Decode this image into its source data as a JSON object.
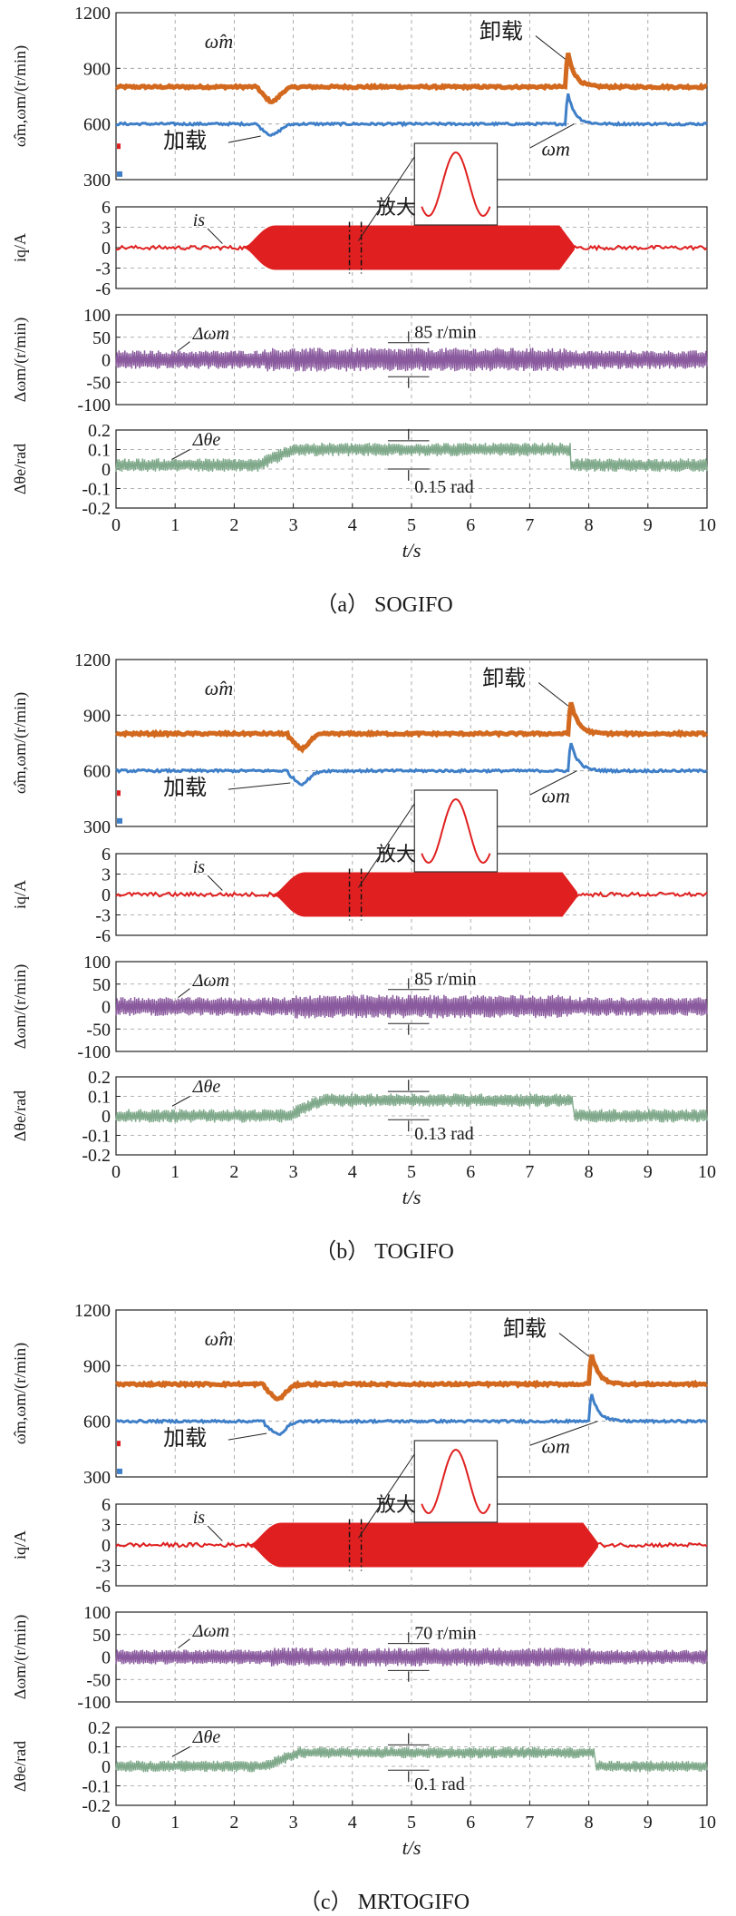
{
  "chart_data": [
    {
      "type": "line",
      "title": "(a) SOGIFO",
      "caption": "（a） SOGIFO",
      "xlabel": "t/s",
      "xlim": [
        0,
        10
      ],
      "x_ticks": [
        "0",
        "1",
        "2",
        "3",
        "4",
        "5",
        "6",
        "7",
        "8",
        "9",
        "10"
      ],
      "load_time": 2.5,
      "unload_time": 7.65,
      "panels": [
        {
          "id": "speed",
          "ylabel": "ω̂m,ωm/(r/min)",
          "ylim": [
            300,
            1200
          ],
          "y_ticks": [
            "300",
            "600",
            "900",
            "1200"
          ],
          "series": [
            {
              "name": "ω̂m",
              "color": "#d2691e",
              "base": 800,
              "dip": -80,
              "peak": 180
            },
            {
              "name": "ωm",
              "color": "#3f7fc8",
              "base": 600,
              "dip": -60,
              "peak": 160
            }
          ],
          "annotations": {
            "load": "加载",
            "unload": "卸载",
            "est_label": "ω̂m",
            "act_label": "ωm"
          }
        },
        {
          "id": "current",
          "ylabel": "iq/A",
          "ylim": [
            -6,
            6
          ],
          "y_ticks": [
            "6",
            "3",
            "0",
            "-3",
            "-6"
          ],
          "series": [
            {
              "name": "is",
              "color": "#e02020",
              "amp_noload": 0.3,
              "amp_load": 3.2
            }
          ],
          "annotations": {
            "series_label": "is",
            "zoom": "放大"
          }
        },
        {
          "id": "speed_error",
          "ylabel": "Δωm/(r/min)",
          "ylim": [
            -100,
            100
          ],
          "y_ticks": [
            "100",
            "50",
            "0",
            "-50",
            "-100"
          ],
          "series": [
            {
              "name": "Δωm",
              "color": "#8a5a9e",
              "center": 0,
              "half_band": 38
            }
          ],
          "annotations": {
            "series_label": "Δωm",
            "range": "85 r/min"
          }
        },
        {
          "id": "angle_error",
          "ylabel": "Δθe/rad",
          "ylim": [
            -0.2,
            0.2
          ],
          "y_ticks": [
            "0.2",
            "0.1",
            "0",
            "-0.1",
            "-0.2"
          ],
          "series": [
            {
              "name": "Δθe",
              "color": "#7fa98a",
              "center_noload": 0.02,
              "center_load": 0.1,
              "half_band": 0.035
            }
          ],
          "annotations": {
            "series_label": "Δθe",
            "range": "0.15 rad"
          }
        }
      ]
    },
    {
      "type": "line",
      "title": "(b) TOGIFO",
      "caption": "（b） TOGIFO",
      "xlabel": "t/s",
      "xlim": [
        0,
        10
      ],
      "x_ticks": [
        "0",
        "1",
        "2",
        "3",
        "4",
        "5",
        "6",
        "7",
        "8",
        "9",
        "10"
      ],
      "load_time": 3.0,
      "unload_time": 7.7,
      "panels": [
        {
          "id": "speed",
          "ylabel": "ω̂m,ωm/(r/min)",
          "ylim": [
            300,
            1200
          ],
          "y_ticks": [
            "300",
            "600",
            "900",
            "1200"
          ],
          "series": [
            {
              "name": "ω̂m",
              "color": "#d2691e",
              "base": 800,
              "dip": -80,
              "peak": 170
            },
            {
              "name": "ωm",
              "color": "#3f7fc8",
              "base": 600,
              "dip": -70,
              "peak": 150
            }
          ],
          "annotations": {
            "load": "加载",
            "unload": "卸载",
            "est_label": "ω̂m",
            "act_label": "ωm"
          }
        },
        {
          "id": "current",
          "ylabel": "iq/A",
          "ylim": [
            -6,
            6
          ],
          "y_ticks": [
            "6",
            "3",
            "0",
            "-3",
            "-6"
          ],
          "series": [
            {
              "name": "is",
              "color": "#e02020",
              "amp_noload": 0.3,
              "amp_load": 3.2
            }
          ],
          "annotations": {
            "series_label": "is",
            "zoom": "放大"
          }
        },
        {
          "id": "speed_error",
          "ylabel": "Δωm/(r/min)",
          "ylim": [
            -100,
            100
          ],
          "y_ticks": [
            "100",
            "50",
            "0",
            "-50",
            "-100"
          ],
          "series": [
            {
              "name": "Δωm",
              "color": "#8a5a9e",
              "center": 0,
              "half_band": 38
            }
          ],
          "annotations": {
            "series_label": "Δωm",
            "range": "85 r/min"
          }
        },
        {
          "id": "angle_error",
          "ylabel": "Δθe/rad",
          "ylim": [
            -0.2,
            0.2
          ],
          "y_ticks": [
            "0.2",
            "0.1",
            "0",
            "-0.1",
            "-0.2"
          ],
          "series": [
            {
              "name": "Δθe",
              "color": "#7fa98a",
              "center_noload": 0.0,
              "center_load": 0.08,
              "half_band": 0.035
            }
          ],
          "annotations": {
            "series_label": "Δθe",
            "range": "0.13 rad"
          }
        }
      ]
    },
    {
      "type": "line",
      "title": "(c) MRTOGIFO",
      "caption": "（c） MRTOGIFO",
      "xlabel": "t/s",
      "xlim": [
        0,
        10
      ],
      "x_ticks": [
        "0",
        "1",
        "2",
        "3",
        "4",
        "5",
        "6",
        "7",
        "8",
        "9",
        "10"
      ],
      "load_time": 2.6,
      "unload_time": 8.05,
      "panels": [
        {
          "id": "speed",
          "ylabel": "ω̂m,ωm/(r/min)",
          "ylim": [
            300,
            1200
          ],
          "y_ticks": [
            "300",
            "600",
            "900",
            "1200"
          ],
          "series": [
            {
              "name": "ω̂m",
              "color": "#d2691e",
              "base": 800,
              "dip": -80,
              "peak": 160
            },
            {
              "name": "ωm",
              "color": "#3f7fc8",
              "base": 600,
              "dip": -70,
              "peak": 150
            }
          ],
          "annotations": {
            "load": "加载",
            "unload": "卸载",
            "est_label": "ω̂m",
            "act_label": "ωm"
          }
        },
        {
          "id": "current",
          "ylabel": "iq/A",
          "ylim": [
            -6,
            6
          ],
          "y_ticks": [
            "6",
            "3",
            "0",
            "-3",
            "-6"
          ],
          "series": [
            {
              "name": "is",
              "color": "#e02020",
              "amp_noload": 0.3,
              "amp_load": 3.2
            }
          ],
          "annotations": {
            "series_label": "is",
            "zoom": "放大"
          }
        },
        {
          "id": "speed_error",
          "ylabel": "Δωm/(r/min)",
          "ylim": [
            -100,
            100
          ],
          "y_ticks": [
            "100",
            "50",
            "0",
            "-50",
            "-100"
          ],
          "series": [
            {
              "name": "Δωm",
              "color": "#8a5a9e",
              "center": 0,
              "half_band": 30
            }
          ],
          "annotations": {
            "series_label": "Δωm",
            "range": "70 r/min"
          }
        },
        {
          "id": "angle_error",
          "ylabel": "Δθe/rad",
          "ylim": [
            -0.2,
            0.2
          ],
          "y_ticks": [
            "0.2",
            "0.1",
            "0",
            "-0.1",
            "-0.2"
          ],
          "series": [
            {
              "name": "Δθe",
              "color": "#7fa98a",
              "center_noload": 0.0,
              "center_load": 0.07,
              "half_band": 0.03
            }
          ],
          "annotations": {
            "series_label": "Δθe",
            "range": "0.1 rad"
          }
        }
      ]
    }
  ]
}
